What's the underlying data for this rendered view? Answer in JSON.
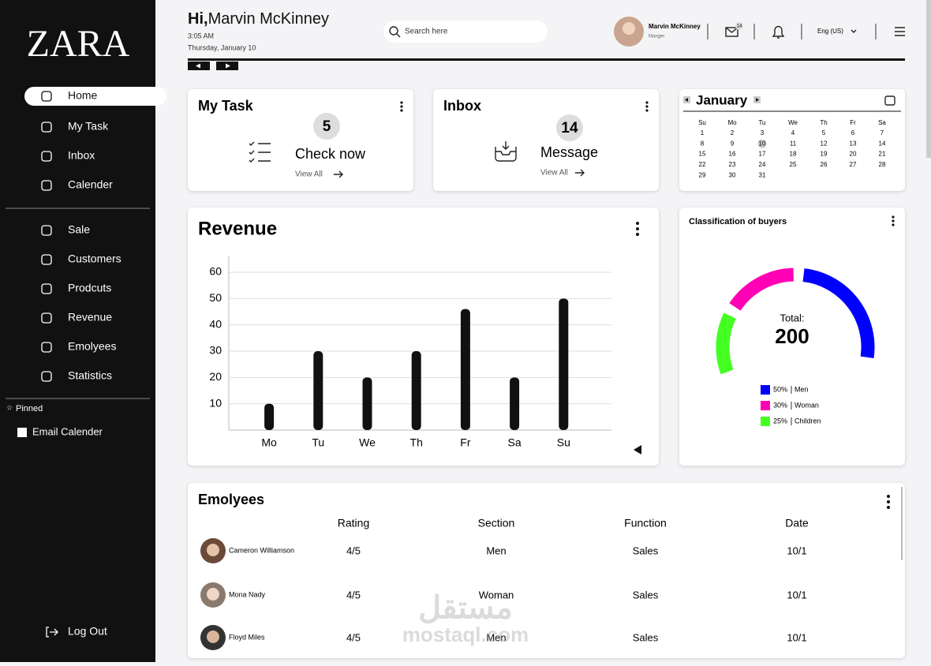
{
  "sidebar": {
    "logo": "ZARA",
    "nav_main": [
      "Home",
      "My Task",
      "Inbox",
      "Calender"
    ],
    "nav_more": [
      "Sale",
      "Customers",
      "Prodcuts",
      "Revenue",
      "Emolyees",
      "Statistics"
    ],
    "pinned_title": "Pinned",
    "pinned": [
      "Email Calender"
    ],
    "logout": "Log Out"
  },
  "header": {
    "greeting": "Hi,",
    "name": "Marvin McKinney",
    "time": "3:05 AM",
    "date": "Thursday, January 10",
    "search": "Search here",
    "user": {
      "name": "Marvin McKinney",
      "role": "Manger"
    },
    "mail_badge": 14,
    "language": "Eng (US)"
  },
  "task_card": {
    "title": "My Task",
    "count": 5,
    "action": "Check now",
    "link": "View All"
  },
  "inbox_card": {
    "title": "Inbox",
    "count": 14,
    "action": "Message",
    "link": "View All"
  },
  "calendar": {
    "month": "January",
    "weekdays": [
      "Su",
      "Mo",
      "Tu",
      "We",
      "Th",
      "Fr",
      "Sa"
    ],
    "days": [
      1,
      2,
      3,
      4,
      5,
      6,
      7,
      8,
      9,
      10,
      11,
      12,
      13,
      14,
      15,
      16,
      17,
      18,
      19,
      20,
      21,
      22,
      23,
      24,
      25,
      26,
      27,
      28,
      29,
      30,
      31
    ],
    "selected": 10
  },
  "revenue": {
    "title": "Revenue",
    "chart": {
      "type": "bar",
      "categories": [
        "Mo",
        "Tu",
        "We",
        "Th",
        "Fr",
        "Sa",
        "Su"
      ],
      "values": [
        10,
        30,
        20,
        30,
        46,
        20,
        50
      ],
      "color": "#111111",
      "ylim": [
        0,
        66
      ],
      "yticks": [
        10,
        20,
        30,
        40,
        50,
        60
      ],
      "grid": true
    }
  },
  "buyers": {
    "title": "Classification of buyers",
    "chart": {
      "type": "gauge",
      "total_label": "Total:",
      "total": 200,
      "categories": [
        "Men",
        "Woman",
        "Children"
      ],
      "values": [
        50,
        30,
        25
      ],
      "value_labels": [
        "50%",
        "30%",
        "25%"
      ],
      "colors": [
        "#0000ff",
        "#ff00b4",
        "#44ff22"
      ]
    }
  },
  "employees": {
    "title": "Emolyees",
    "columns": [
      "Rating",
      "Section",
      "Function",
      "Date"
    ],
    "rows": [
      {
        "name": "Cameron Williamson",
        "rating": "4/5",
        "section": "Men",
        "function": "Sales",
        "date": "10/1"
      },
      {
        "name": "Mona Nady",
        "rating": "4/5",
        "section": "Woman",
        "function": "Sales",
        "date": "10/1"
      },
      {
        "name": "Floyd Miles",
        "rating": "4/5",
        "section": "Men",
        "function": "Sales",
        "date": "10/1"
      }
    ]
  },
  "watermark": {
    "arabic": "مستقل",
    "latin": "mostaql.com"
  }
}
